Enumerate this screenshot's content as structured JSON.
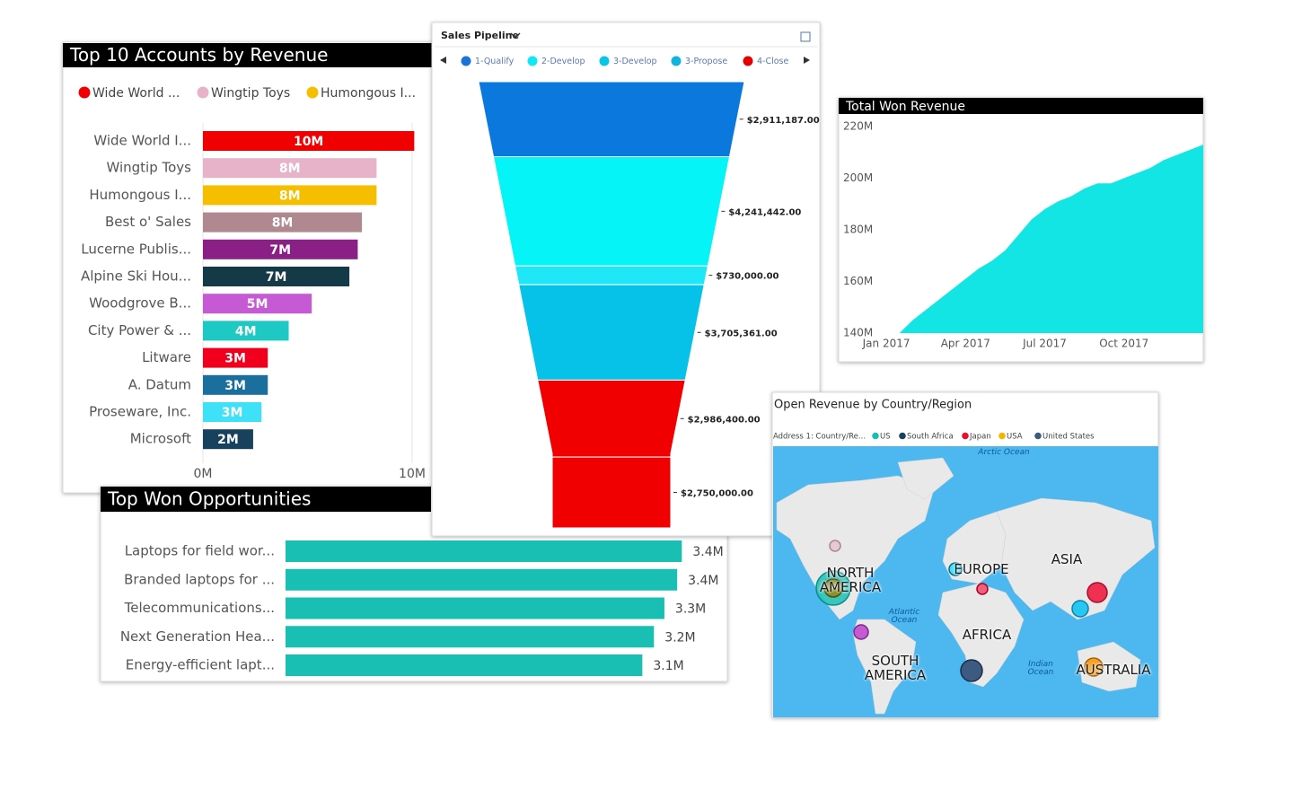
{
  "chart_data": [
    {
      "type": "bar",
      "title": "Top 10 Accounts by Revenue",
      "legend": [
        {
          "name": "Wide World ...",
          "color": "#f00000"
        },
        {
          "name": "Wingtip Toys",
          "color": "#e6b3c8"
        },
        {
          "name": "Humongous I...",
          "color": "#f5bf00"
        }
      ],
      "categories": [
        "Wide World I...",
        "Wingtip Toys",
        "Humongous I...",
        "Best o' Sales",
        "Lucerne Publis...",
        "Alpine Ski Hou...",
        "Woodgrove B...",
        "City Power & ...",
        "Litware",
        "A. Datum",
        "Proseware, Inc.",
        "Microsoft"
      ],
      "values": [
        10.1,
        8.3,
        8.3,
        7.6,
        7.4,
        7.0,
        5.2,
        4.1,
        3.1,
        3.1,
        2.8,
        2.4
      ],
      "value_labels": [
        "10M",
        "8M",
        "8M",
        "8M",
        "7M",
        "7M",
        "5M",
        "4M",
        "3M",
        "3M",
        "3M",
        "2M"
      ],
      "colors": [
        "#f00000",
        "#e6b3c8",
        "#f5bf00",
        "#b08890",
        "#8a1f86",
        "#143a48",
        "#c65ad4",
        "#1fc9c3",
        "#f0001c",
        "#1a6f9c",
        "#3fe1f8",
        "#17415c"
      ],
      "xlim": [
        0,
        10
      ],
      "xticks": [
        {
          "value": 0,
          "label": "0M"
        },
        {
          "value": 10,
          "label": "10M"
        }
      ],
      "grid": true
    },
    {
      "type": "funnel",
      "title": "Sales Pipeline",
      "legend": [
        {
          "name": "1-Qualify",
          "color": "#1a73d8"
        },
        {
          "name": "2-Develop",
          "color": "#10e8f5"
        },
        {
          "name": "3-Develop",
          "color": "#0ac6e4"
        },
        {
          "name": "3-Propose",
          "color": "#12b4dc"
        },
        {
          "name": "4-Close",
          "color": "#e60000"
        }
      ],
      "values": [
        2911187,
        4241442,
        730000,
        3705361,
        2986400,
        2750000
      ],
      "value_labels": [
        "$2,911,187.00",
        "$4,241,442.00",
        "$730,000.00",
        "$3,705,361.00",
        "$2,986,400.00",
        "$2,750,000.00"
      ],
      "colors": [
        "#0a78dc",
        "#04f4f8",
        "#1ee8f8",
        "#06c2e8",
        "#f00000",
        "#f00000"
      ]
    },
    {
      "type": "area",
      "title": "Total Won Revenue",
      "x": [
        -1.5,
        -1,
        -0.5,
        0,
        0.5,
        1,
        1.5,
        2,
        2.5,
        3,
        3.5,
        4,
        4.5,
        5,
        5.5,
        6,
        6.5,
        7,
        7.5,
        8,
        8.5,
        9,
        9.5,
        10,
        10.5,
        11,
        11.5,
        12
      ],
      "values": [
        140,
        140,
        140,
        140,
        140,
        145,
        149,
        153,
        157,
        161,
        165,
        168,
        172,
        178,
        184,
        188,
        191,
        193,
        196,
        198,
        198,
        200,
        202,
        204,
        207,
        209,
        211,
        213
      ],
      "color": "#12e5e3",
      "xlim": [
        -1.6,
        12
      ],
      "xticks": [
        {
          "value": 0,
          "label": "Jan 2017"
        },
        {
          "value": 3,
          "label": "Apr 2017"
        },
        {
          "value": 6,
          "label": "Jul 2017"
        },
        {
          "value": 9,
          "label": "Oct 2017"
        }
      ],
      "ylim": [
        140,
        220
      ],
      "yticks": [
        {
          "value": 140,
          "label": "140M"
        },
        {
          "value": 160,
          "label": "160M"
        },
        {
          "value": 180,
          "label": "180M"
        },
        {
          "value": 200,
          "label": "200M"
        },
        {
          "value": 220,
          "label": "220M"
        }
      ]
    },
    {
      "type": "bar",
      "title": "Top Won Opportunities",
      "categories": [
        "Laptops for field wor...",
        "Branded laptops for ...",
        "Telecommunications...",
        "Next Generation Hea...",
        "Energy-efficient lapt..."
      ],
      "values": [
        3.41,
        3.37,
        3.26,
        3.17,
        3.07
      ],
      "value_labels": [
        "3.4M",
        "3.4M",
        "3.3M",
        "3.2M",
        "3.1M"
      ],
      "color": "#1abfb4",
      "xlim": [
        0,
        3.5
      ]
    }
  ],
  "map": {
    "title": "Open Revenue by Country/Region",
    "legend_title": "Address 1: Country/Re...",
    "legend": [
      {
        "name": "US",
        "color": "#1abfb4"
      },
      {
        "name": "South Africa",
        "color": "#17415c"
      },
      {
        "name": "Japan",
        "color": "#e8102c"
      },
      {
        "name": "USA",
        "color": "#f5b400"
      },
      {
        "name": "United States",
        "color": "#3d5a80"
      }
    ],
    "labels": [
      "NORTH AMERICA",
      "EUROPE",
      "ASIA",
      "AFRICA",
      "SOUTH AMERICA",
      "AUSTRALIA",
      "Arctic Ocean",
      "Atlantic Ocean",
      "Indian Ocean"
    ]
  }
}
